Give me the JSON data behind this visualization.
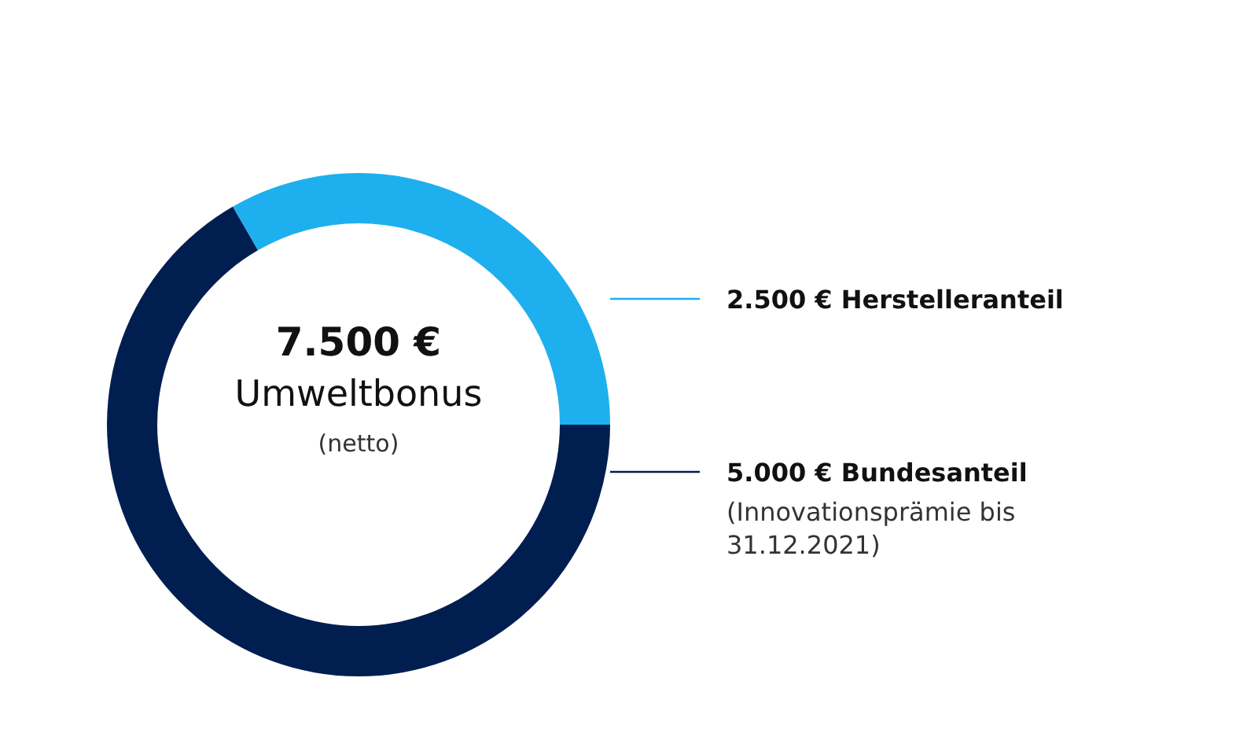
{
  "chart_data": {
    "type": "donut",
    "title": "7.500 €",
    "subtitle": "Umweltbonus",
    "categories": [
      "Herstelleranteil",
      "Bundesanteil"
    ],
    "values": [
      2500,
      5000
    ],
    "value_labels": [
      "2.500 €",
      "5.000 €"
    ],
    "colors": [
      "#1eb0ee",
      "#001e50"
    ],
    "annotations": [
      "(netto)",
      "(Innovationsprämie bis 31.12.2021)"
    ]
  }
}
